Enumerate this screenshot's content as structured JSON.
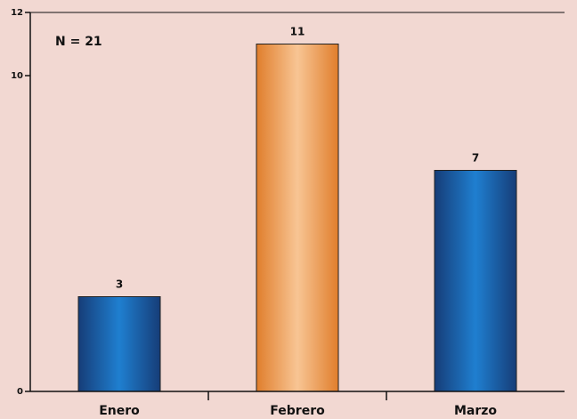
{
  "chart_data": {
    "type": "bar",
    "categories": [
      "Enero",
      "Febrero",
      "Marzo"
    ],
    "values": [
      3,
      11,
      7
    ],
    "value_labels": [
      "3",
      "11",
      "7"
    ],
    "bar_styles": [
      "blue",
      "orange",
      "blue"
    ],
    "colors": {
      "background": "#f2d8d2",
      "blue_dark": "#163d78",
      "blue_light": "#1f7fd0",
      "orange_dark": "#e07e2c",
      "orange_light": "#f8c594",
      "axis": "#111111"
    },
    "yticks": [
      "0",
      "10",
      "12"
    ],
    "ytick_values": [
      0,
      10,
      12
    ],
    "ylim": [
      0,
      12
    ],
    "annotation": "N = 21",
    "grid": false
  }
}
